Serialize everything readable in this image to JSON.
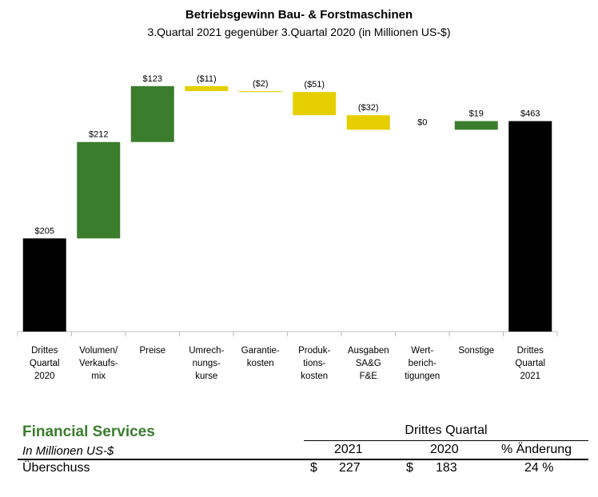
{
  "chart_data": {
    "type": "bar",
    "subtype": "waterfall",
    "title": "Betriebsgewinn Bau- & Forstmaschinen",
    "subtitle": "3.Quartal 2021 gegenüber 3.Quartal 2020 (in Millionen US-$)",
    "categories": [
      [
        "Drittes",
        "Quartal",
        "2020"
      ],
      [
        "Volumen/",
        "Verkaufs-",
        "mix"
      ],
      [
        "Preise"
      ],
      [
        "Umrech-",
        "nungs-",
        "kurse"
      ],
      [
        "Garantie-",
        "kosten"
      ],
      [
        "Produk-",
        "tions-",
        "kosten"
      ],
      [
        "Ausgaben",
        "SA&G",
        "F&E"
      ],
      [
        "Wert-",
        "berich-",
        "tigungen"
      ],
      [
        "Sonstige"
      ],
      [
        "Drittes",
        "Quartal",
        "2021"
      ]
    ],
    "values": [
      205,
      212,
      123,
      -11,
      -2,
      -51,
      -32,
      0,
      19,
      463
    ],
    "value_labels": [
      "$205",
      "$212",
      "$123",
      "($11)",
      "($2)",
      "($51)",
      "($32)",
      "$0",
      "$19",
      "$463"
    ],
    "bar_kinds": [
      "total",
      "increase",
      "increase",
      "decrease",
      "decrease",
      "decrease",
      "decrease",
      "decrease",
      "increase",
      "total"
    ],
    "ylim": [
      0,
      580
    ],
    "grid": false,
    "colors": {
      "total": "#000000",
      "increase": "#3a7d2c",
      "decrease": "#e6cf00"
    }
  },
  "financial_services": {
    "title": "Financial Services",
    "unit": "In Millionen US-$",
    "period_header": "Drittes Quartal",
    "col_2021": "2021",
    "col_2020": "2020",
    "col_change": "% Änderung",
    "row_label": "Überschuss",
    "currency": "$",
    "val_2021": "227",
    "val_2020": "183",
    "change": "24 %"
  }
}
